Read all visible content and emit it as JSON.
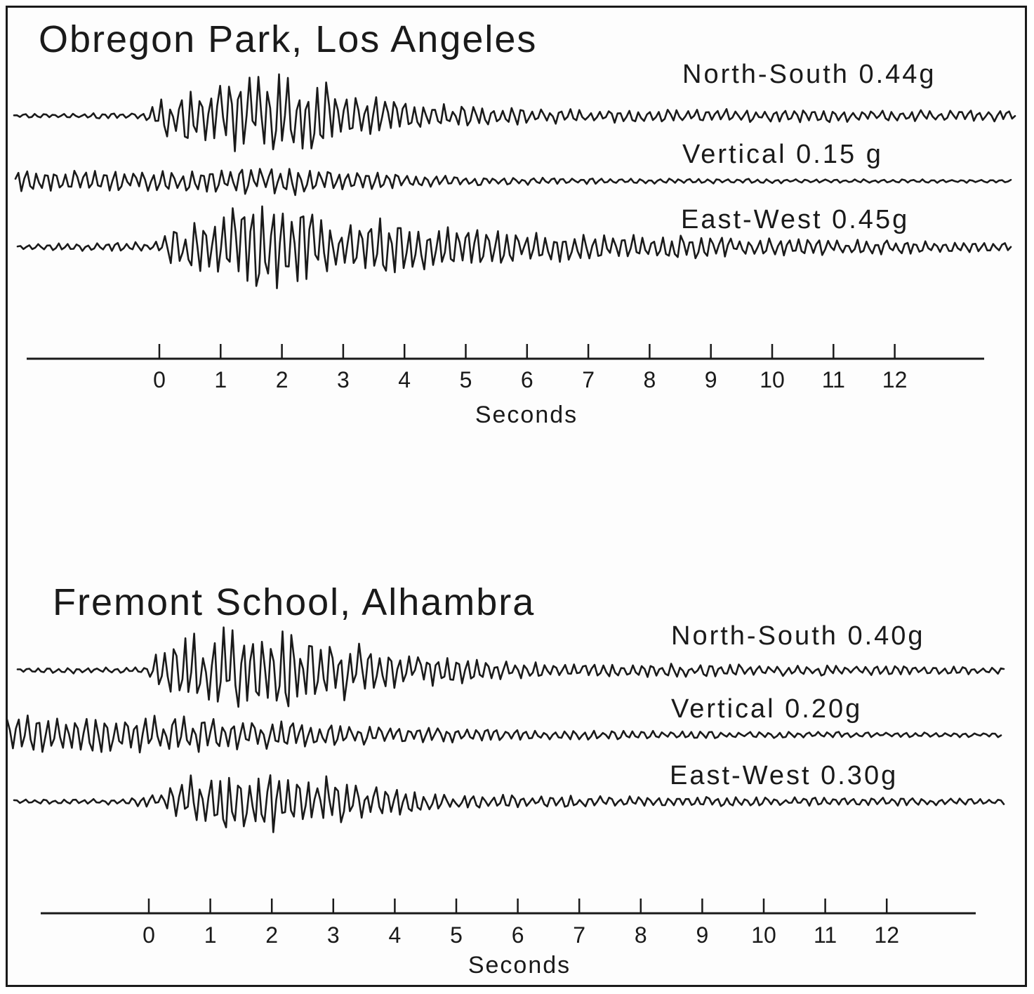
{
  "chart_data": [
    {
      "type": "line",
      "title": "Obregon Park, Los Angeles",
      "xlabel": "Seconds",
      "ticks": [
        0,
        1,
        2,
        3,
        4,
        5,
        6,
        7,
        8,
        9,
        10,
        11,
        12
      ],
      "series": [
        {
          "name": "North-South 0.44g",
          "peak_g": 0.44
        },
        {
          "name": "Vertical 0.15 g",
          "peak_g": 0.15
        },
        {
          "name": "East-West 0.45g",
          "peak_g": 0.45
        }
      ]
    },
    {
      "type": "line",
      "title": "Fremont School, Alhambra",
      "xlabel": "Seconds",
      "ticks": [
        0,
        1,
        2,
        3,
        4,
        5,
        6,
        7,
        8,
        9,
        10,
        11,
        12
      ],
      "series": [
        {
          "name": "North-South 0.40g",
          "peak_g": 0.4
        },
        {
          "name": "Vertical 0.20g",
          "peak_g": 0.2
        },
        {
          "name": "East-West 0.30g",
          "peak_g": 0.3
        }
      ]
    }
  ]
}
